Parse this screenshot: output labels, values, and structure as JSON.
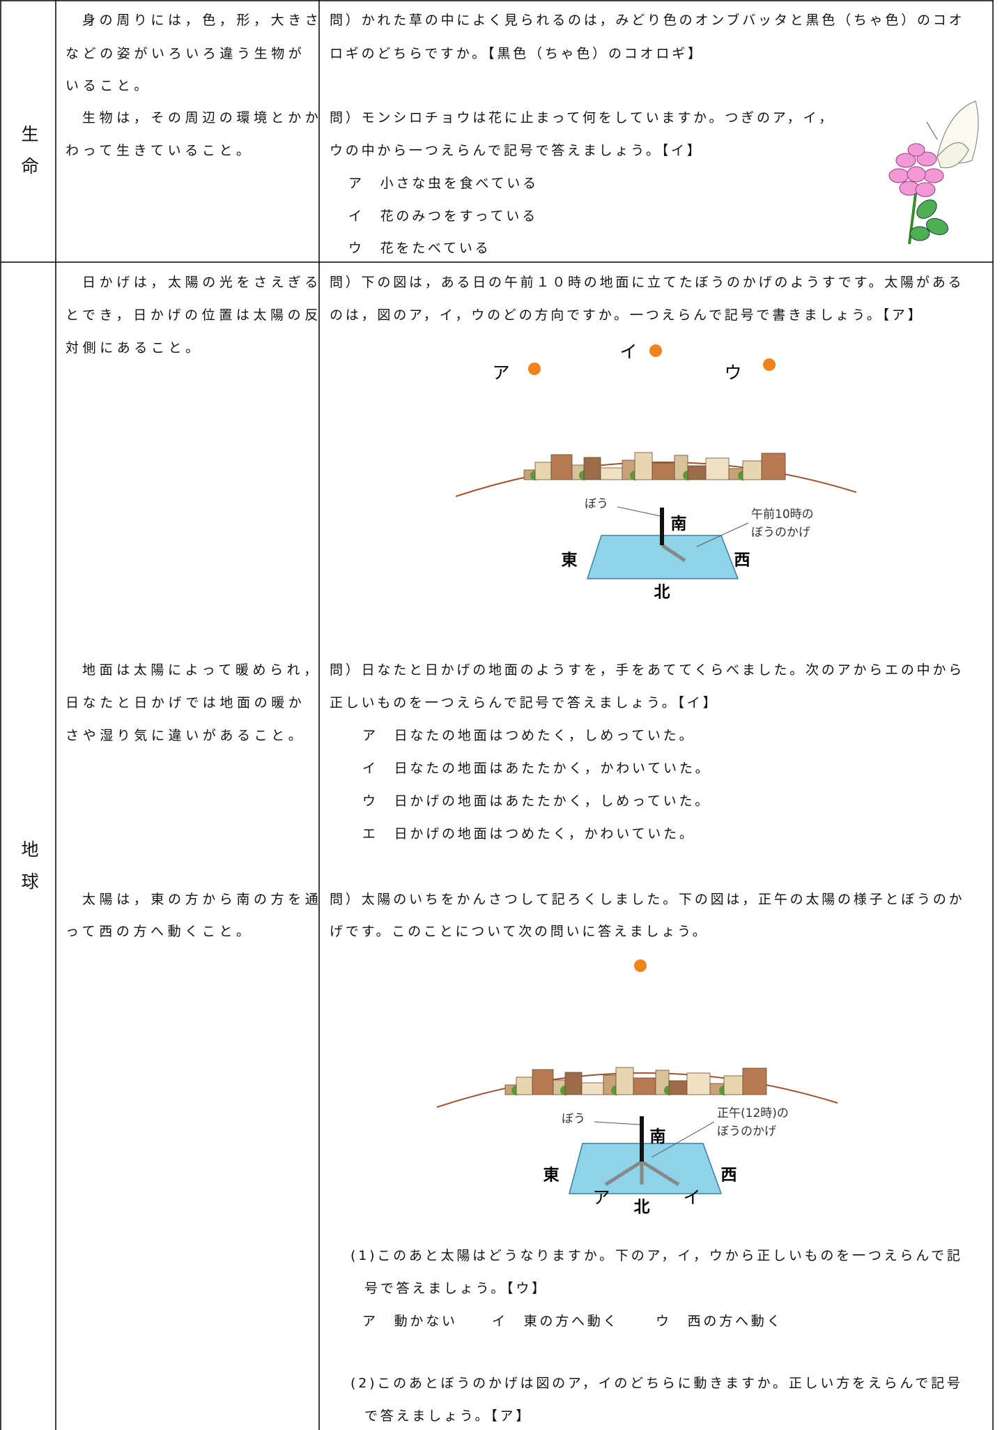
{
  "rows": [
    {
      "category": "生命",
      "goals": [
        [
          "身の周りには，色，形，大きさ",
          "などの姿がいろいろ違う生物が",
          "いること。"
        ],
        [
          "生物は，その周辺の環境とかか",
          "わって生きていること。"
        ]
      ],
      "questions": [
        {
          "lines": [
            "問）かれた草の中によく見られるのは，みどり色のオンブバッタと黒色（ちゃ色）のコオ",
            "ロギのどちらですか。【黒色（ちゃ色）のコオロギ】"
          ]
        },
        {
          "lines": [
            "問）モンシロチョウは花に止まって何をしていますか。つぎのア，イ，",
            "ウの中から一つえらんで記号で答えましょう。【イ】"
          ],
          "choices": [
            "ア　小さな虫を食べている",
            "イ　花のみつをすっている",
            "ウ　花をたべている"
          ]
        }
      ]
    },
    {
      "category": "地球",
      "goals": [
        [
          "日かげは，太陽の光をさえぎる",
          "とでき，日かげの位置は太陽の反",
          "対側にあること。"
        ],
        [
          "地面は太陽によって暖められ，",
          "日なたと日かげでは地面の暖か",
          "さや湿り気に違いがあること。"
        ],
        [
          "太陽は，東の方から南の方を通",
          "って西の方へ動くこと。"
        ]
      ],
      "questions": [
        {
          "lines": [
            "問）下の図は，ある日の午前１０時の地面に立てたぼうのかげのようすです。太陽がある",
            "のは，図のア，イ，ウのどの方向ですか。一つえらんで記号で書きましょう。【ア】"
          ],
          "figure": {
            "sun_labels": [
              "ア",
              "イ",
              "ウ"
            ],
            "stick": "ぼう",
            "directions": [
              "南",
              "東",
              "西",
              "北"
            ],
            "shadow": [
              "午前10時の",
              "ぼうのかげ"
            ]
          }
        },
        {
          "lines": [
            "問）日なたと日かげの地面のようすを，手をあててくらべました。次のアからエの中から",
            "正しいものを一つえらんで記号で答えましょう。【イ】"
          ],
          "choices": [
            "ア　日なたの地面はつめたく，しめっていた。",
            "イ　日なたの地面はあたたかく，かわいていた。",
            "ウ　日かげの地面はあたたかく，しめっていた。",
            "エ　日かげの地面はつめたく，かわいていた。"
          ]
        },
        {
          "lines": [
            "問）太陽のいちをかんさつして記ろくしました。下の図は，正午の太陽の様子とぼうのか",
            "げです。このことについて次の問いに答えましょう。"
          ],
          "figure": {
            "stick": "ぼう",
            "directions": [
              "南",
              "東",
              "西",
              "北"
            ],
            "shadow": [
              "正午(12時)の",
              "ぼうのかげ"
            ],
            "shadow_labels": [
              "ア",
              "イ"
            ]
          },
          "parts": [
            {
              "lines": [
                "(1)このあと太陽はどうなりますか。下のア，イ，ウから正しいものを一つえらんで記",
                "号で答えましょう。【ウ】"
              ],
              "choices": [
                "ア　動かない",
                "イ　東の方へ動く",
                "ウ　西の方へ動く"
              ]
            },
            {
              "lines": [
                "(2)このあとぼうのかげは図のア，イのどちらに動きますか。正しい方をえらんで記号",
                "で答えましょう。【ア】"
              ]
            }
          ]
        }
      ]
    }
  ]
}
